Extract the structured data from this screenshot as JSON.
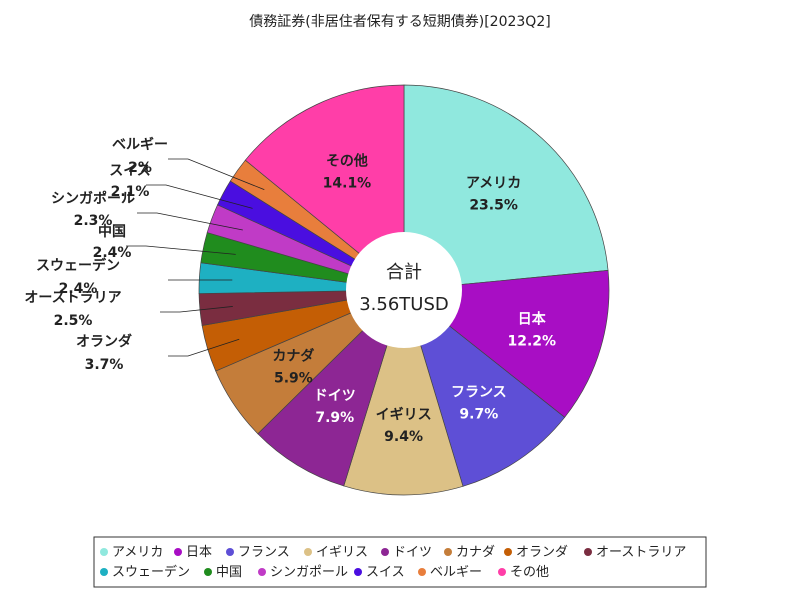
{
  "chart_data": {
    "type": "pie",
    "title": "債務証券(非居住者保有する短期債券)[2023Q2]",
    "center_label": "合計",
    "center_value": "3.56TUSD",
    "slices": [
      {
        "name": "アメリカ",
        "value": 23.5,
        "label": "23.5%",
        "color": "#90e8de",
        "label_color": "#222222"
      },
      {
        "name": "日本",
        "value": 12.2,
        "label": "12.2%",
        "color": "#a80ec4",
        "label_color": "#ffffff"
      },
      {
        "name": "フランス",
        "value": 9.7,
        "label": "9.7%",
        "color": "#5e4fd6",
        "label_color": "#ffffff"
      },
      {
        "name": "イギリス",
        "value": 9.4,
        "label": "9.4%",
        "color": "#dcc186",
        "label_color": "#222222"
      },
      {
        "name": "ドイツ",
        "value": 7.9,
        "label": "7.9%",
        "color": "#8d2694",
        "label_color": "#ffffff"
      },
      {
        "name": "カナダ",
        "value": 5.9,
        "label": "5.9%",
        "color": "#c47d3a",
        "label_color": "#222222"
      },
      {
        "name": "オランダ",
        "value": 3.7,
        "label": "3.7%",
        "color": "#c45e05",
        "label_color": "#222222"
      },
      {
        "name": "オーストラリア",
        "value": 2.5,
        "label": "2.5%",
        "color": "#7a2d40",
        "label_color": "#222222"
      },
      {
        "name": "スウェーデン",
        "value": 2.4,
        "label": "2.4%",
        "color": "#1eb0c2",
        "label_color": "#222222"
      },
      {
        "name": "中国",
        "value": 2.4,
        "label": "2.4%",
        "color": "#208c1e",
        "label_color": "#222222"
      },
      {
        "name": "シンガポール",
        "value": 2.3,
        "label": "2.3%",
        "color": "#c03bc6",
        "label_color": "#222222"
      },
      {
        "name": "スイス",
        "value": 2.1,
        "label": "2.1%",
        "color": "#4a0ee0",
        "label_color": "#222222"
      },
      {
        "name": "ベルギー",
        "value": 2.0,
        "label": "2%",
        "color": "#e87e3c",
        "label_color": "#222222"
      },
      {
        "name": "その他",
        "value": 14.1,
        "label": "14.1%",
        "color": "#ff3ea8",
        "label_color": "#222222"
      }
    ],
    "legend_position": "bottom"
  }
}
